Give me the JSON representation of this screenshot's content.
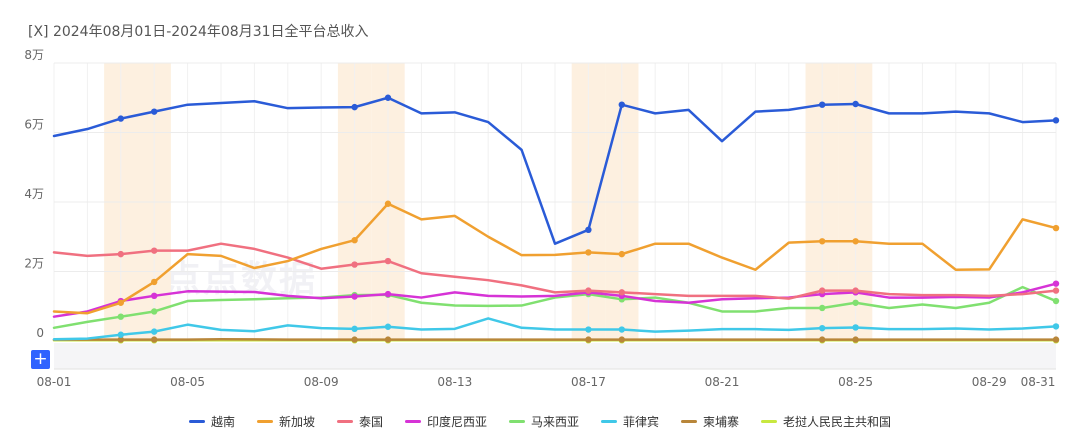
{
  "title": "[X]  2024年08月01日-2024年08月31日全平台总收入",
  "watermark_text": "点点数据",
  "plus_label": "+",
  "chart_data": {
    "type": "line",
    "x": [
      "08-01",
      "08-02",
      "08-03",
      "08-04",
      "08-05",
      "08-06",
      "08-07",
      "08-08",
      "08-09",
      "08-10",
      "08-11",
      "08-12",
      "08-13",
      "08-14",
      "08-15",
      "08-16",
      "08-17",
      "08-18",
      "08-19",
      "08-20",
      "08-21",
      "08-22",
      "08-23",
      "08-24",
      "08-25",
      "08-26",
      "08-27",
      "08-28",
      "08-29",
      "08-30",
      "08-31"
    ],
    "x_tick_labels": [
      "08-01",
      "08-05",
      "08-09",
      "08-13",
      "08-17",
      "08-21",
      "08-25",
      "08-29",
      "08-31"
    ],
    "y_tick_labels": [
      "0",
      "2万",
      "4万",
      "6万",
      "8万"
    ],
    "ylim": [
      0,
      80000
    ],
    "highlight_days": [
      "08-03",
      "08-04",
      "08-10",
      "08-11",
      "08-17",
      "08-18",
      "08-24",
      "08-25"
    ],
    "marker_days": [
      "08-03",
      "08-04",
      "08-10",
      "08-11",
      "08-17",
      "08-18",
      "08-24",
      "08-25",
      "08-31"
    ],
    "series": [
      {
        "name": "越南",
        "color": "#2a5bd7",
        "values": [
          59000,
          61000,
          64000,
          66000,
          68000,
          68500,
          69000,
          67000,
          67200,
          67300,
          70000,
          65500,
          65800,
          63000,
          55000,
          28000,
          32000,
          68000,
          65500,
          66500,
          57500,
          66000,
          66500,
          68000,
          68200,
          65500,
          65500,
          66000,
          65500,
          63000,
          63500
        ]
      },
      {
        "name": "新加坡",
        "color": "#f0a030",
        "values": [
          8500,
          8000,
          11000,
          17000,
          25000,
          24500,
          21000,
          23000,
          26500,
          29000,
          39500,
          35000,
          36000,
          30000,
          24700,
          24800,
          25500,
          25000,
          28000,
          28000,
          24000,
          20500,
          28300,
          28700,
          28700,
          28000,
          28000,
          20500,
          20600,
          35000,
          32500
        ]
      },
      {
        "name": "泰国",
        "color": "#f07080",
        "values": [
          25500,
          24500,
          25000,
          26000,
          26000,
          28000,
          26500,
          24000,
          20800,
          22000,
          23000,
          19500,
          18500,
          17500,
          16000,
          14000,
          14500,
          14000,
          13500,
          13000,
          13000,
          13000,
          12200,
          14500,
          14500,
          13500,
          13200,
          13200,
          13000,
          13500,
          14500
        ]
      },
      {
        "name": "印度尼西亚",
        "color": "#d633d6",
        "values": [
          7000,
          8500,
          11500,
          13000,
          14300,
          14200,
          14100,
          13000,
          12300,
          12800,
          13500,
          12500,
          14000,
          13000,
          12800,
          13000,
          14000,
          13000,
          11500,
          11000,
          12000,
          12300,
          12500,
          13500,
          14000,
          12500,
          12500,
          12700,
          12500,
          14000,
          16500
        ]
      },
      {
        "name": "马来西亚",
        "color": "#80e070",
        "values": [
          3800,
          5500,
          7000,
          8500,
          11500,
          11800,
          12000,
          12300,
          12500,
          13200,
          13300,
          11000,
          10200,
          10100,
          10200,
          12500,
          13500,
          12000,
          12500,
          11000,
          8500,
          8500,
          9500,
          9500,
          11000,
          9500,
          10500,
          9500,
          11000,
          15500,
          11500
        ]
      },
      {
        "name": "菲律宾",
        "color": "#40c8e8",
        "values": [
          500,
          700,
          1800,
          2700,
          4700,
          3200,
          2800,
          4500,
          3700,
          3500,
          4100,
          3300,
          3500,
          6500,
          3800,
          3300,
          3300,
          3300,
          2700,
          3000,
          3400,
          3400,
          3200,
          3700,
          3900,
          3400,
          3400,
          3600,
          3300,
          3600,
          4200
        ]
      },
      {
        "name": "柬埔寨",
        "color": "#b8863a",
        "values": [
          400,
          400,
          400,
          400,
          400,
          500,
          450,
          400,
          400,
          400,
          400,
          400,
          400,
          400,
          400,
          400,
          400,
          400,
          400,
          400,
          400,
          400,
          400,
          400,
          400,
          400,
          400,
          400,
          400,
          400,
          400
        ]
      },
      {
        "name": "老挝人民民主共和国",
        "color": "#c8e840",
        "values": [
          200,
          200,
          200,
          200,
          200,
          200,
          200,
          200,
          200,
          200,
          200,
          200,
          200,
          200,
          200,
          200,
          200,
          200,
          200,
          200,
          200,
          200,
          200,
          200,
          200,
          200,
          200,
          200,
          200,
          200,
          200
        ]
      }
    ]
  }
}
